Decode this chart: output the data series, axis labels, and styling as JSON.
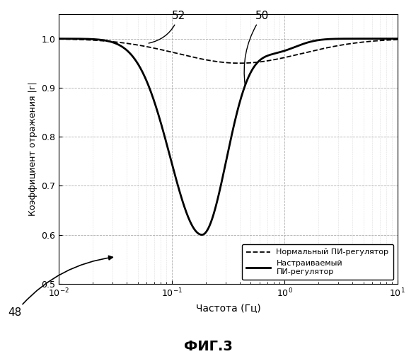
{
  "title": "ФИГ.3",
  "xlabel": "Частота (Гц)",
  "ylabel": "Коэффициент отражения |г|",
  "ylim": [
    0.5,
    1.05
  ],
  "yticks": [
    0.5,
    0.6,
    0.7,
    0.8,
    0.9,
    1.0
  ],
  "legend_labels": [
    "Нормальный ПИ-регулятор",
    "Настраиваемый\nПИ-регулятор"
  ],
  "annotation_50": "50",
  "annotation_52": "52",
  "annotation_48": "48",
  "line_color": "#000000",
  "background_color": "#ffffff",
  "grid_color": "#999999"
}
